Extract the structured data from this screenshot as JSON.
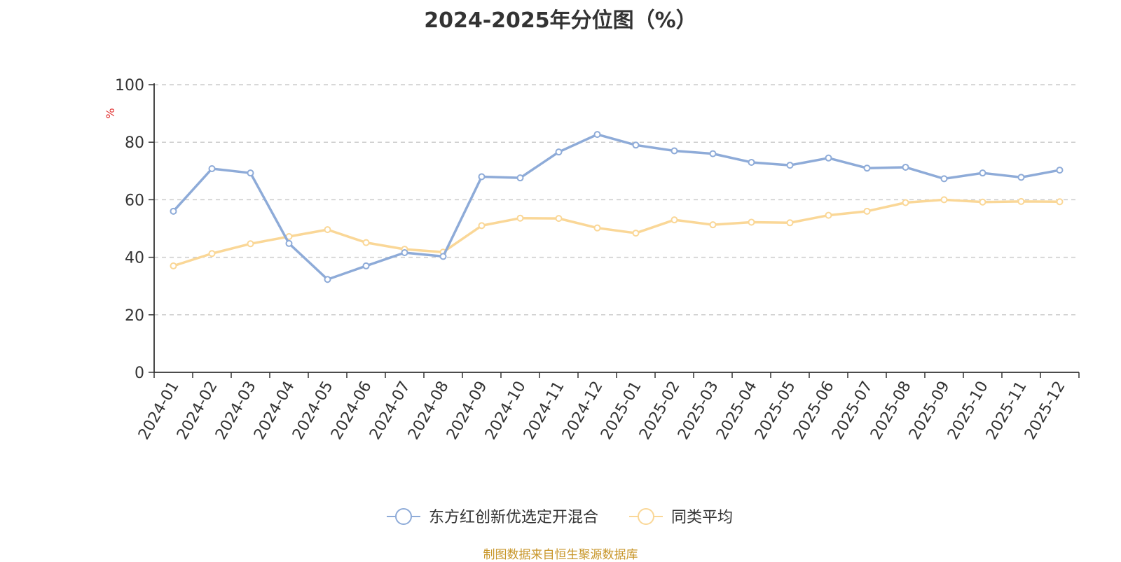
{
  "title": "2024-2025年分位图（%）",
  "footer": "制图数据来自恒生聚源数据库",
  "chart_data": {
    "type": "line",
    "title": "2024-2025年分位图（%）",
    "ylabel": "%",
    "xlabel": "",
    "ylim": [
      0,
      100
    ],
    "yticks": [
      0,
      20,
      40,
      60,
      80,
      100
    ],
    "grid": true,
    "legend_position": "bottom-center",
    "categories": [
      "2024-01",
      "2024-02",
      "2024-03",
      "2024-04",
      "2024-05",
      "2024-06",
      "2024-07",
      "2024-08",
      "2024-09",
      "2024-10",
      "2024-11",
      "2024-12",
      "2025-01",
      "2025-02",
      "2025-03",
      "2025-04",
      "2025-05",
      "2025-06",
      "2025-07",
      "2025-08",
      "2025-09",
      "2025-10",
      "2025-11",
      "2025-12"
    ],
    "series": [
      {
        "name": "东方红创新优选定开混合",
        "color": "#8eabd8",
        "values": [
          56,
          70.8,
          69.3,
          44.8,
          32.3,
          37,
          41.6,
          40.3,
          68,
          67.6,
          76.6,
          82.7,
          79,
          77,
          76,
          73,
          72,
          74.5,
          71,
          71.3,
          67.3,
          69.3,
          67.8,
          70.3
        ]
      },
      {
        "name": "同类平均",
        "color": "#fad797",
        "values": [
          37,
          41.3,
          44.7,
          47.2,
          49.6,
          45.1,
          42.8,
          41.8,
          51,
          53.6,
          53.5,
          50.2,
          48.4,
          53,
          51.3,
          52.2,
          52,
          54.6,
          56,
          59,
          60,
          59.2,
          59.4,
          59.3
        ]
      }
    ]
  }
}
